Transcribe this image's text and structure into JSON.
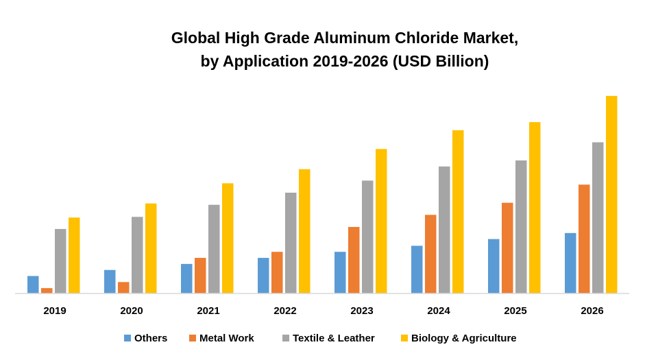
{
  "chart_data": {
    "type": "bar",
    "title": [
      "Global High Grade Aluminum Chloride Market,",
      "by Application 2019-2026 (USD Billion)"
    ],
    "xlabel": "",
    "ylabel": "",
    "categories": [
      "2019",
      "2020",
      "2021",
      "2022",
      "2023",
      "2024",
      "2025",
      "2026"
    ],
    "ylim": [
      0,
      30
    ],
    "grid": false,
    "legend_position": "bottom",
    "series": [
      {
        "name": "Others",
        "color": "#5B9BD5",
        "values": [
          2.6,
          3.5,
          4.4,
          5.3,
          6.2,
          7.1,
          8.1,
          9.0
        ]
      },
      {
        "name": "Metal Work",
        "color": "#ED7D31",
        "values": [
          0.8,
          1.7,
          5.3,
          6.2,
          9.9,
          11.7,
          13.5,
          16.2
        ]
      },
      {
        "name": "Textile & Leather",
        "color": "#A5A5A5",
        "values": [
          9.6,
          11.4,
          13.2,
          15.0,
          16.8,
          18.9,
          19.8,
          22.5
        ]
      },
      {
        "name": "Biology & Agriculture",
        "color": "#FFC000",
        "values": [
          11.3,
          13.4,
          16.4,
          18.5,
          21.5,
          24.3,
          25.5,
          29.4
        ]
      }
    ]
  }
}
